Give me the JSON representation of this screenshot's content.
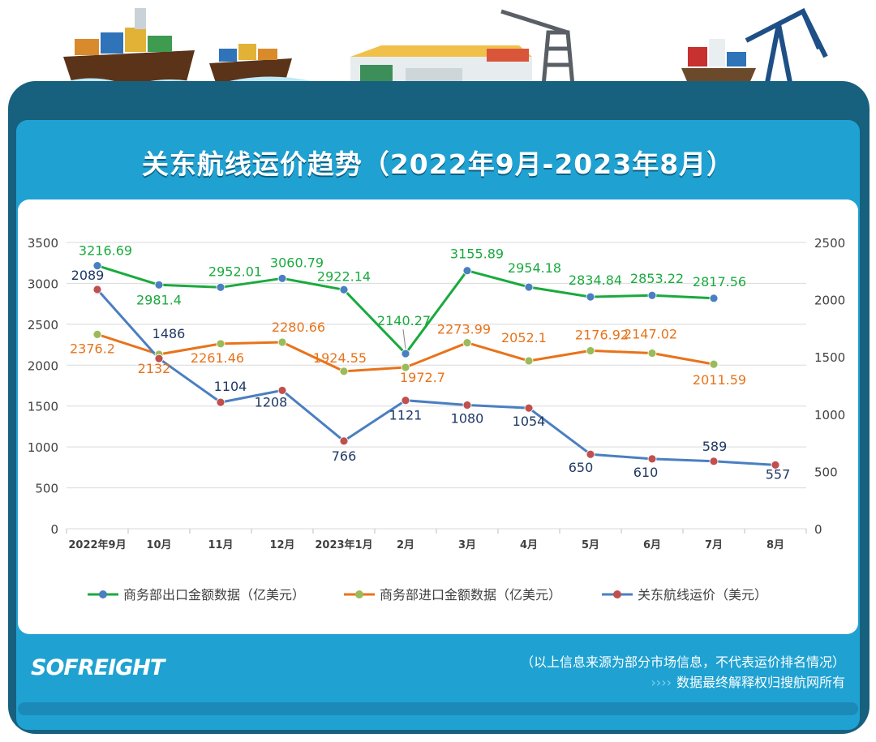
{
  "header": {
    "title": "关东航线运价趋势（2022年9月-2023年8月）",
    "logo": "SOFREIGHT",
    "footnote": "（以上信息来源为部分市场信息，不代表运价排名情况）",
    "copyright": "数据最终解释权归搜航网所有",
    "copyright_arrows": "››››"
  },
  "colors": {
    "export": "#1aaa3e",
    "import": "#e8731a",
    "freight_line": "#4a7fc1",
    "freight_marker": "#c0504d",
    "frame_dark": "#17607e",
    "frame_light": "#1fa2d2"
  },
  "chart_data": {
    "type": "line",
    "title": "",
    "categories": [
      "2022年9月",
      "10月",
      "11月",
      "12月",
      "2023年1月",
      "2月",
      "3月",
      "4月",
      "5月",
      "6月",
      "7月",
      "8月"
    ],
    "y_left": {
      "ticks": [
        0,
        500,
        1000,
        1500,
        2000,
        2500,
        3000,
        3500
      ],
      "range": [
        0,
        3500
      ]
    },
    "y_right": {
      "ticks": [
        0,
        500,
        1000,
        1500,
        2000,
        2500
      ],
      "range": [
        0,
        2500
      ]
    },
    "grid": true,
    "legend_position": "bottom",
    "series": [
      {
        "name": "商务部出口金额数据（亿美元）",
        "axis": "left",
        "color": "#1aaa3e",
        "marker_color": "#4a7fc1",
        "values": [
          3216.69,
          2981.4,
          2952.01,
          3060.79,
          2922.14,
          2140.27,
          3155.89,
          2954.18,
          2834.84,
          2853.22,
          2817.56,
          null
        ],
        "labels": [
          "3216.69",
          "2981.4",
          "2952.01",
          "3060.79",
          "2922.14",
          "2140.27",
          "3155.89",
          "2954.18",
          "2834.84",
          "2853.22",
          "2817.56",
          ""
        ]
      },
      {
        "name": "商务部进口金额数据（亿美元）",
        "axis": "left",
        "color": "#e8731a",
        "marker_color": "#9bbb59",
        "values": [
          2376.2,
          2132,
          2261.46,
          2280.66,
          1924.55,
          1972.7,
          2273.99,
          2052.1,
          2176.92,
          2147.02,
          2011.59,
          null
        ],
        "labels": [
          "2376.2",
          "2132",
          "2261.46",
          "2280.66",
          "1924.55",
          "1972.7",
          "2273.99",
          "2052.1",
          "2176.92",
          "2147.02",
          "2011.59",
          ""
        ]
      },
      {
        "name": "关东航线运价（美元）",
        "axis": "right",
        "color": "#4a7fc1",
        "marker_color": "#c0504d",
        "values": [
          2089,
          1486,
          1104,
          1208,
          766,
          1121,
          1080,
          1054,
          650,
          610,
          589,
          557
        ],
        "labels": [
          "2089",
          "1486",
          "1104",
          "1208",
          "766",
          "1121",
          "1080",
          "1054",
          "650",
          "610",
          "589",
          "557"
        ]
      }
    ]
  }
}
